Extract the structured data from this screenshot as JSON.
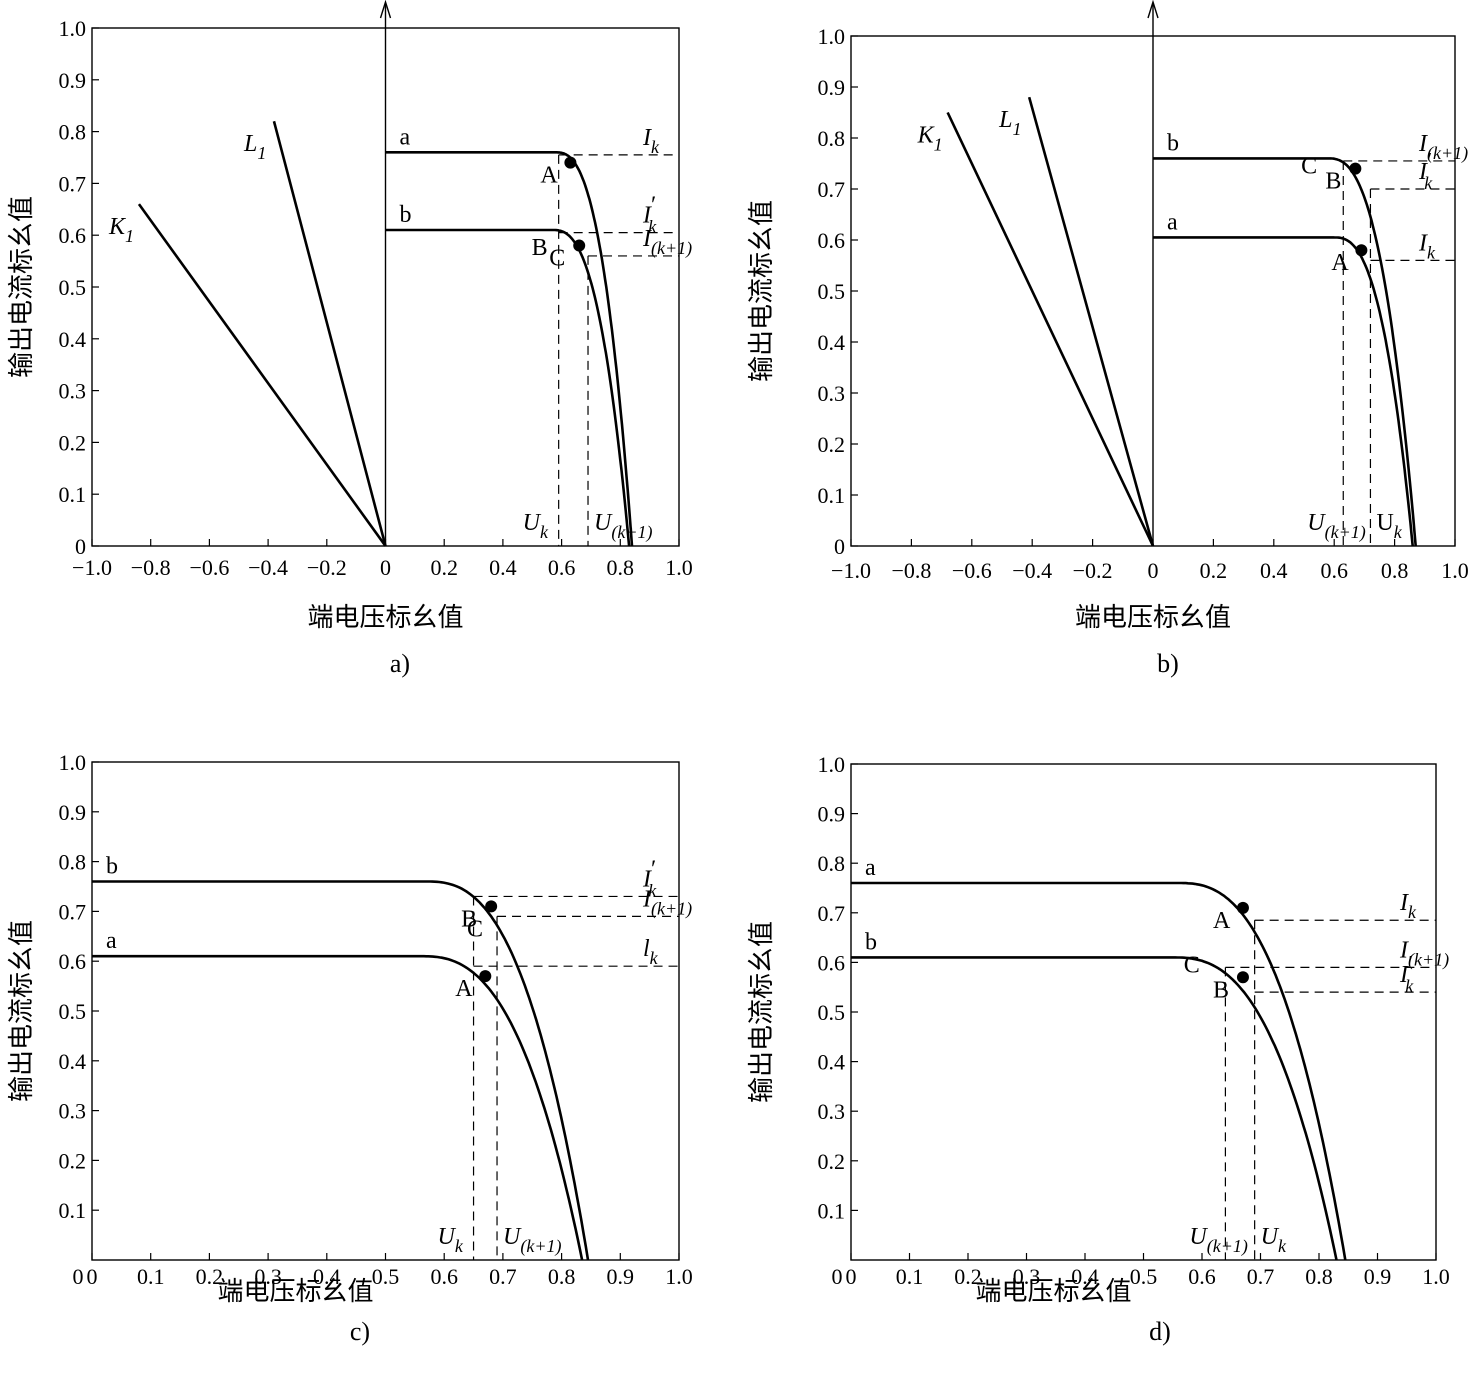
{
  "chart_data": [
    {
      "panel": "a)",
      "type": "line",
      "title": "",
      "xlabel": "端电压标幺值",
      "ylabel": "输出电流标幺值",
      "xlim": [
        -1.0,
        1.0
      ],
      "ylim": [
        0,
        1.0
      ],
      "xticks": [
        "−1.0",
        "−0.8",
        "−0.6",
        "−0.4",
        "−0.2",
        "0",
        "0.2",
        "0.4",
        "0.6",
        "0.8",
        "1.0"
      ],
      "xtick_values": [
        -1.0,
        -0.8,
        -0.6,
        -0.4,
        -0.2,
        0,
        0.2,
        0.4,
        0.6,
        0.8,
        1.0
      ],
      "yticks": [
        "0",
        "0.1",
        "0.2",
        "0.3",
        "0.4",
        "0.5",
        "0.6",
        "0.7",
        "0.8",
        "0.9",
        "1.0"
      ],
      "ytick_values": [
        0,
        0.1,
        0.2,
        0.3,
        0.4,
        0.5,
        0.6,
        0.7,
        0.8,
        0.9,
        1.0
      ],
      "vertical_axis_at_zero": true,
      "series": [
        {
          "name": "a",
          "Isc": 0.76,
          "Voc": 0.84,
          "knee": 0.58
        },
        {
          "name": "b",
          "Isc": 0.61,
          "Voc": 0.83,
          "knee": 0.57
        }
      ],
      "load_lines": [
        {
          "name": "K",
          "sub": "1",
          "x": -0.84,
          "y": 0.66
        },
        {
          "name": "L",
          "sub": "1",
          "x": -0.38,
          "y": 0.82
        }
      ],
      "points": [
        {
          "label": "A",
          "x": 0.63,
          "y": 0.74,
          "dot": true
        },
        {
          "label": "B",
          "x": 0.6,
          "y": 0.6,
          "dot": false
        },
        {
          "label": "C",
          "x": 0.66,
          "y": 0.58,
          "dot": true
        }
      ],
      "hlines": [
        {
          "y": 0.755,
          "x_from": 0.59,
          "label": "I",
          "sub": "k",
          "prime": false
        },
        {
          "y": 0.605,
          "x_from": 0.59,
          "label": "I",
          "sub": "k",
          "prime": true
        },
        {
          "y": 0.56,
          "x_from": 0.69,
          "label": "I",
          "sub": "(k+1)",
          "prime": false
        }
      ],
      "vlines": [
        {
          "x": 0.59,
          "y_to": 0.755,
          "label": "U",
          "sub": "k"
        },
        {
          "x": 0.69,
          "y_to": 0.56,
          "label": "U",
          "sub": "(k+1)"
        }
      ]
    },
    {
      "panel": "b)",
      "type": "line",
      "title": "",
      "xlabel": "端电压标幺值",
      "ylabel": "输出电流标幺值",
      "xlim": [
        -1.0,
        1.0
      ],
      "ylim": [
        0,
        1.0
      ],
      "xticks": [
        "−1.0",
        "−0.8",
        "−0.6",
        "−0.4",
        "−0.2",
        "0",
        "0.2",
        "0.4",
        "0.6",
        "0.8",
        "1.0"
      ],
      "xtick_values": [
        -1.0,
        -0.8,
        -0.6,
        -0.4,
        -0.2,
        0,
        0.2,
        0.4,
        0.6,
        0.8,
        1.0
      ],
      "yticks": [
        "0",
        "0.1",
        "0.2",
        "0.3",
        "0.4",
        "0.5",
        "0.6",
        "0.7",
        "0.8",
        "0.9",
        "1.0"
      ],
      "ytick_values": [
        0,
        0.1,
        0.2,
        0.3,
        0.4,
        0.5,
        0.6,
        0.7,
        0.8,
        0.9,
        1.0
      ],
      "vertical_axis_at_zero": true,
      "series": [
        {
          "name": "b",
          "Isc": 0.76,
          "Voc": 0.87,
          "knee": 0.58
        },
        {
          "name": "a",
          "Isc": 0.605,
          "Voc": 0.86,
          "knee": 0.6
        }
      ],
      "load_lines": [
        {
          "name": "K",
          "sub": "1",
          "x": -0.68,
          "y": 0.85
        },
        {
          "name": "L",
          "sub": "1",
          "x": -0.41,
          "y": 0.88
        }
      ],
      "points": [
        {
          "label": "C",
          "x": 0.59,
          "y": 0.77,
          "dot": false
        },
        {
          "label": "B",
          "x": 0.67,
          "y": 0.74,
          "dot": true
        },
        {
          "label": "A",
          "x": 0.69,
          "y": 0.58,
          "dot": true
        }
      ],
      "hlines": [
        {
          "y": 0.755,
          "x_from": 0.63,
          "label": "I",
          "sub": "(k+1)",
          "prime": false
        },
        {
          "y": 0.7,
          "x_from": 0.72,
          "label": "I",
          "sub": "k",
          "prime": true
        },
        {
          "y": 0.56,
          "x_from": 0.72,
          "label": "I",
          "sub": "k",
          "prime": false
        }
      ],
      "vlines": [
        {
          "x": 0.63,
          "y_to": 0.755,
          "label": "U",
          "sub": "(k+1)"
        },
        {
          "x": 0.72,
          "y_to": 0.7,
          "label": "U",
          "sub": "k",
          "upright": true
        }
      ]
    },
    {
      "panel": "c)",
      "type": "line",
      "title": "",
      "xlabel": "端电压标幺值",
      "ylabel": "输出电流标幺值",
      "xlim": [
        0,
        1.0
      ],
      "ylim": [
        0,
        1.0
      ],
      "xticks": [
        "0",
        "0.1",
        "0.2",
        "0.3",
        "0.4",
        "0.5",
        "0.6",
        "0.7",
        "0.8",
        "0.9",
        "1.0"
      ],
      "xtick_values": [
        0,
        0.1,
        0.2,
        0.3,
        0.4,
        0.5,
        0.6,
        0.7,
        0.8,
        0.9,
        1.0
      ],
      "yticks": [
        "0.1",
        "0.2",
        "0.3",
        "0.4",
        "0.5",
        "0.6",
        "0.7",
        "0.8",
        "0.9",
        "1.0"
      ],
      "ytick_values": [
        0.1,
        0.2,
        0.3,
        0.4,
        0.5,
        0.6,
        0.7,
        0.8,
        0.9,
        1.0
      ],
      "vertical_axis_at_zero": false,
      "series": [
        {
          "name": "b",
          "Isc": 0.76,
          "Voc": 0.845,
          "knee": 0.57
        },
        {
          "name": "a",
          "Isc": 0.61,
          "Voc": 0.835,
          "knee": 0.56
        }
      ],
      "load_lines": [],
      "points": [
        {
          "label": "B",
          "x": 0.68,
          "y": 0.71,
          "dot": true
        },
        {
          "label": "C",
          "x": 0.69,
          "y": 0.69,
          "dot": false
        },
        {
          "label": "A",
          "x": 0.67,
          "y": 0.57,
          "dot": true
        }
      ],
      "hlines": [
        {
          "y": 0.73,
          "x_from": 0.65,
          "label": "I",
          "sub": "k",
          "prime": true
        },
        {
          "y": 0.69,
          "x_from": 0.69,
          "label": "I",
          "sub": "(k+1)",
          "prime": false
        },
        {
          "y": 0.59,
          "x_from": 0.65,
          "label": "l",
          "sub": "k",
          "prime": false
        }
      ],
      "vlines": [
        {
          "x": 0.65,
          "y_to": 0.73,
          "label": "U",
          "sub": "k"
        },
        {
          "x": 0.69,
          "y_to": 0.69,
          "label": "U",
          "sub": "(k+1)"
        }
      ]
    },
    {
      "panel": "d)",
      "type": "line",
      "title": "",
      "xlabel": "端电压标幺值",
      "ylabel": "输出电流标幺值",
      "xlim": [
        0,
        1.0
      ],
      "ylim": [
        0,
        1.0
      ],
      "xticks": [
        "0",
        "0.1",
        "0.2",
        "0.3",
        "0.4",
        "0.5",
        "0.6",
        "0.7",
        "0.8",
        "0.9",
        "1.0"
      ],
      "xtick_values": [
        0,
        0.1,
        0.2,
        0.3,
        0.4,
        0.5,
        0.6,
        0.7,
        0.8,
        0.9,
        1.0
      ],
      "yticks": [
        "0.1",
        "0.2",
        "0.3",
        "0.4",
        "0.5",
        "0.6",
        "0.7",
        "0.8",
        "0.9",
        "1.0"
      ],
      "ytick_values": [
        0.1,
        0.2,
        0.3,
        0.4,
        0.5,
        0.6,
        0.7,
        0.8,
        0.9,
        1.0
      ],
      "vertical_axis_at_zero": false,
      "series": [
        {
          "name": "a",
          "Isc": 0.76,
          "Voc": 0.845,
          "knee": 0.56
        },
        {
          "name": "b",
          "Isc": 0.61,
          "Voc": 0.83,
          "knee": 0.55
        }
      ],
      "load_lines": [],
      "points": [
        {
          "label": "A",
          "x": 0.67,
          "y": 0.71,
          "dot": true
        },
        {
          "label": "C",
          "x": 0.62,
          "y": 0.62,
          "dot": false
        },
        {
          "label": "B",
          "x": 0.67,
          "y": 0.57,
          "dot": true
        }
      ],
      "hlines": [
        {
          "y": 0.685,
          "x_from": 0.69,
          "label": "I",
          "sub": "k",
          "prime": false
        },
        {
          "y": 0.59,
          "x_from": 0.64,
          "label": "I",
          "sub": "(k+1)",
          "prime": false
        },
        {
          "y": 0.54,
          "x_from": 0.69,
          "label": "I",
          "sub": "k",
          "prime": true
        }
      ],
      "vlines": [
        {
          "x": 0.64,
          "y_to": 0.59,
          "label": "U",
          "sub": "(k+1)"
        },
        {
          "x": 0.69,
          "y_to": 0.685,
          "label": "U",
          "sub": "k"
        }
      ]
    }
  ]
}
